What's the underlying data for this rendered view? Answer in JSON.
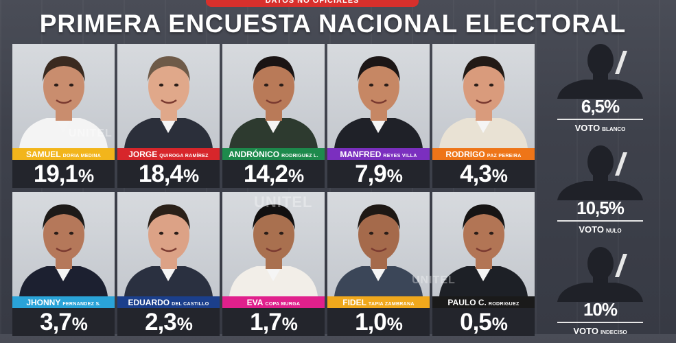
{
  "header": {
    "tab_text": "DATOS NO OFICIALES",
    "title": "PRIMERA ENCUESTA NACIONAL ELECTORAL"
  },
  "candidates": [
    {
      "first": "SAMUEL",
      "rest": "DORIA MEDINA",
      "pct": "19,1",
      "color": "#f2b51b"
    },
    {
      "first": "JORGE",
      "rest": "QUIROGA RAMÍREZ",
      "pct": "18,4",
      "color": "#d7262b"
    },
    {
      "first": "ANDRÓNICO",
      "rest": "RODRIGUEZ L.",
      "pct": "14,2",
      "color": "#1d8a4c"
    },
    {
      "first": "MANFRED",
      "rest": "REYES VILLA",
      "pct": "7,9",
      "color": "#7b2fbf"
    },
    {
      "first": "RODRIGO",
      "rest": "PAZ PEREIRA",
      "pct": "4,3",
      "color": "#ee7518"
    },
    {
      "first": "JHONNY",
      "rest": "FERNANDEZ S.",
      "pct": "3,7",
      "color": "#2aa3d8"
    },
    {
      "first": "EDUARDO",
      "rest": "DEL CASTILLO",
      "pct": "2,3",
      "color": "#1b3f8c"
    },
    {
      "first": "EVA",
      "rest": "COPA MURGA",
      "pct": "1,7",
      "color": "#e0208c"
    },
    {
      "first": "FIDEL",
      "rest": "TAPIA ZAMBRANA",
      "pct": "1,0",
      "color": "#f0a81c"
    },
    {
      "first": "PAULO C.",
      "rest": "RODRIGUEZ",
      "pct": "0,5",
      "color": "#1a1a1a"
    }
  ],
  "percent_sign": "%",
  "side_votes": [
    {
      "label_a": "VOTO",
      "label_b": "BLANCO",
      "pct": "6,5%"
    },
    {
      "label_a": "VOTO",
      "label_b": "NULO",
      "pct": "10,5%"
    },
    {
      "label_a": "VOTO",
      "label_b": "INDECISO",
      "pct": "10%"
    }
  ],
  "watermark": "UNITEL"
}
